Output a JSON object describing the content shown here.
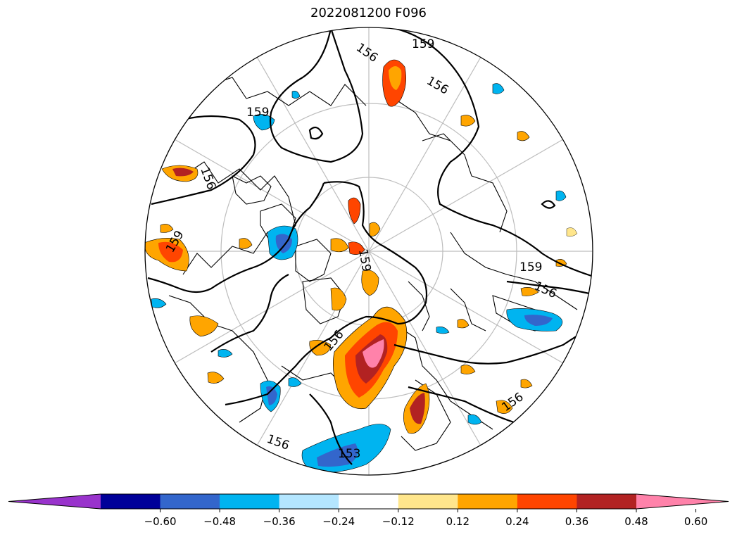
{
  "title": "2022081200 F096",
  "map": {
    "contour_labels": [
      "156",
      "159",
      "156",
      "159",
      "156",
      "159",
      "159",
      "156",
      "156",
      "156",
      "153",
      "159",
      "156"
    ]
  },
  "colorbar": {
    "colors": [
      "#9933cc",
      "#000099",
      "#3366cc",
      "#00b4f0",
      "#b4e6ff",
      "#ffffff",
      "#ffe68c",
      "#ffa500",
      "#ff4500",
      "#b22222",
      "#ff82aa"
    ],
    "ticks": [
      "−0.60",
      "−0.48",
      "−0.36",
      "−0.24",
      "−0.12",
      "0.12",
      "0.24",
      "0.36",
      "0.48",
      "0.60"
    ]
  }
}
